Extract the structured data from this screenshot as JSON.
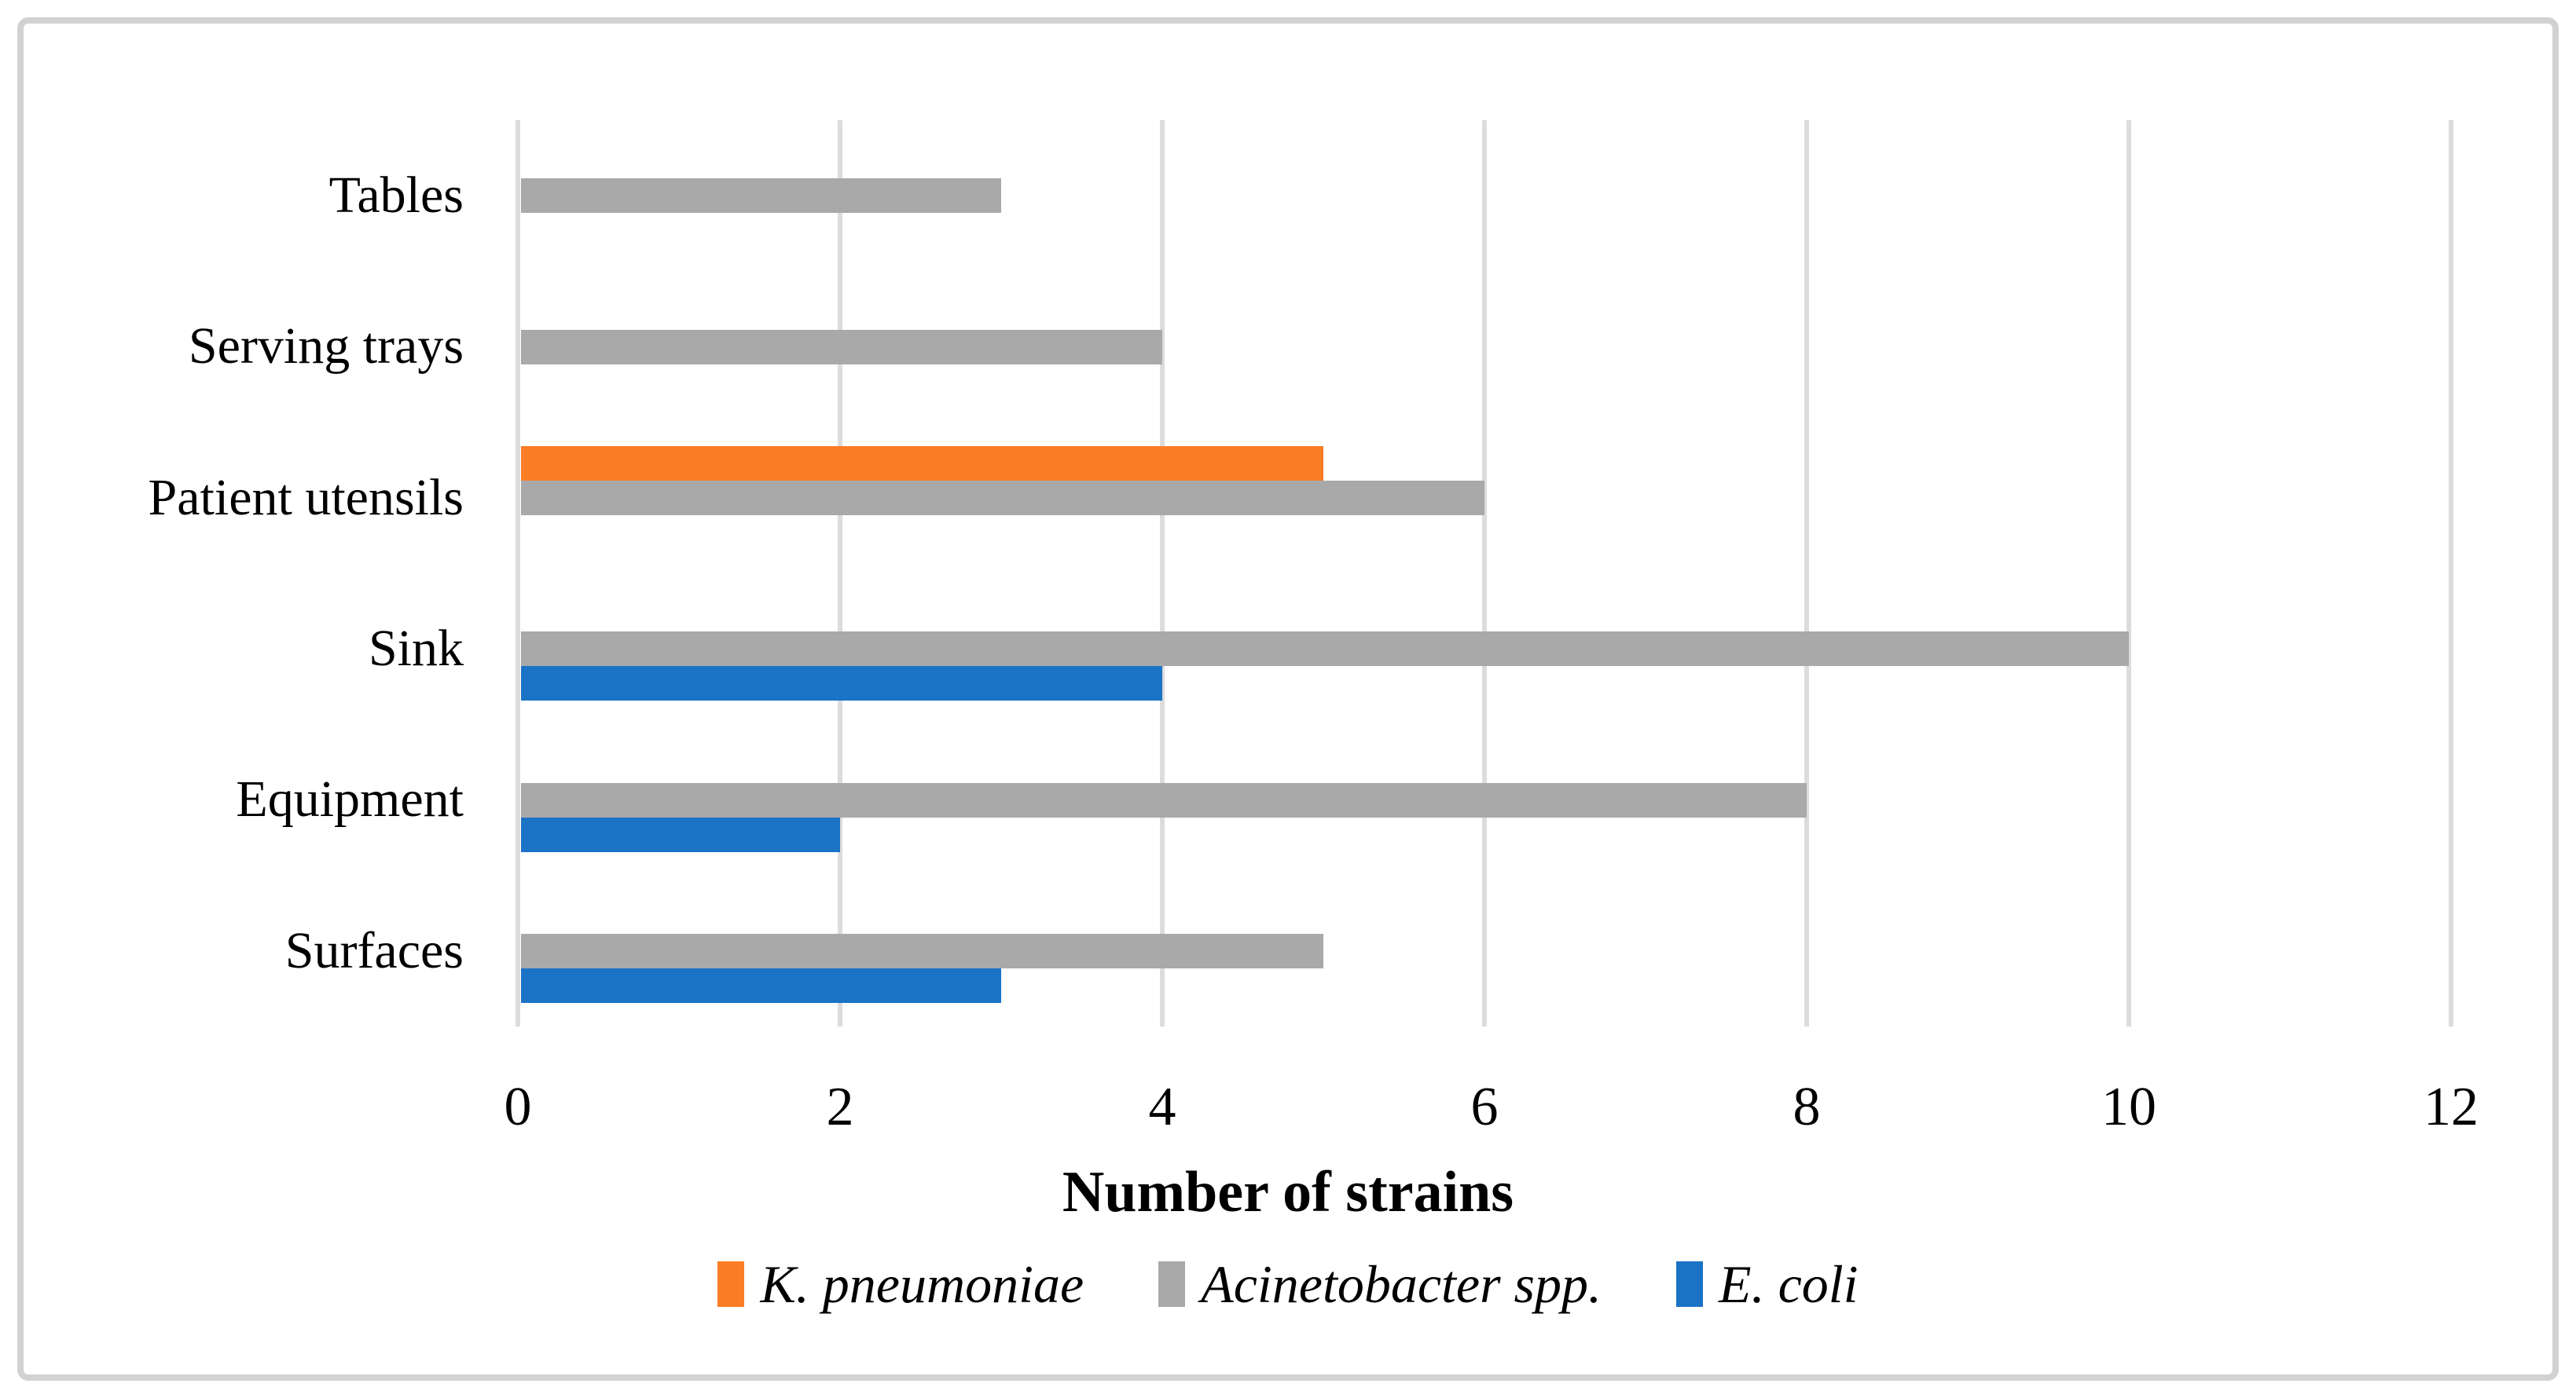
{
  "figure": {
    "background": "#ffffff",
    "border_color": "#d2d2d2"
  },
  "chart_data": {
    "type": "bar",
    "orientation": "horizontal",
    "title": "",
    "xlabel": "Number of strains",
    "ylabel": "",
    "categories": [
      "Tables",
      "Serving trays",
      "Patient utensils",
      "Sink",
      "Equipment",
      "Surfaces"
    ],
    "series": [
      {
        "name": "K. pneumoniae",
        "color": "#fb7d26",
        "values": [
          0,
          0,
          5,
          0,
          0,
          0
        ]
      },
      {
        "name": "Acinetobacter spp.",
        "color": "#a9a9a9",
        "values": [
          3,
          4,
          6,
          10,
          8,
          5
        ]
      },
      {
        "name": "E. coli",
        "color": "#1b73c6",
        "values": [
          0,
          0,
          0,
          4,
          2,
          3
        ]
      }
    ],
    "xlim": [
      0,
      12
    ],
    "xticks": [
      0,
      2,
      4,
      6,
      8,
      10,
      12
    ],
    "grid": "vertical",
    "gridline_color": "#dcdcdc",
    "legend_position": "bottom",
    "text_color": "#000000"
  }
}
